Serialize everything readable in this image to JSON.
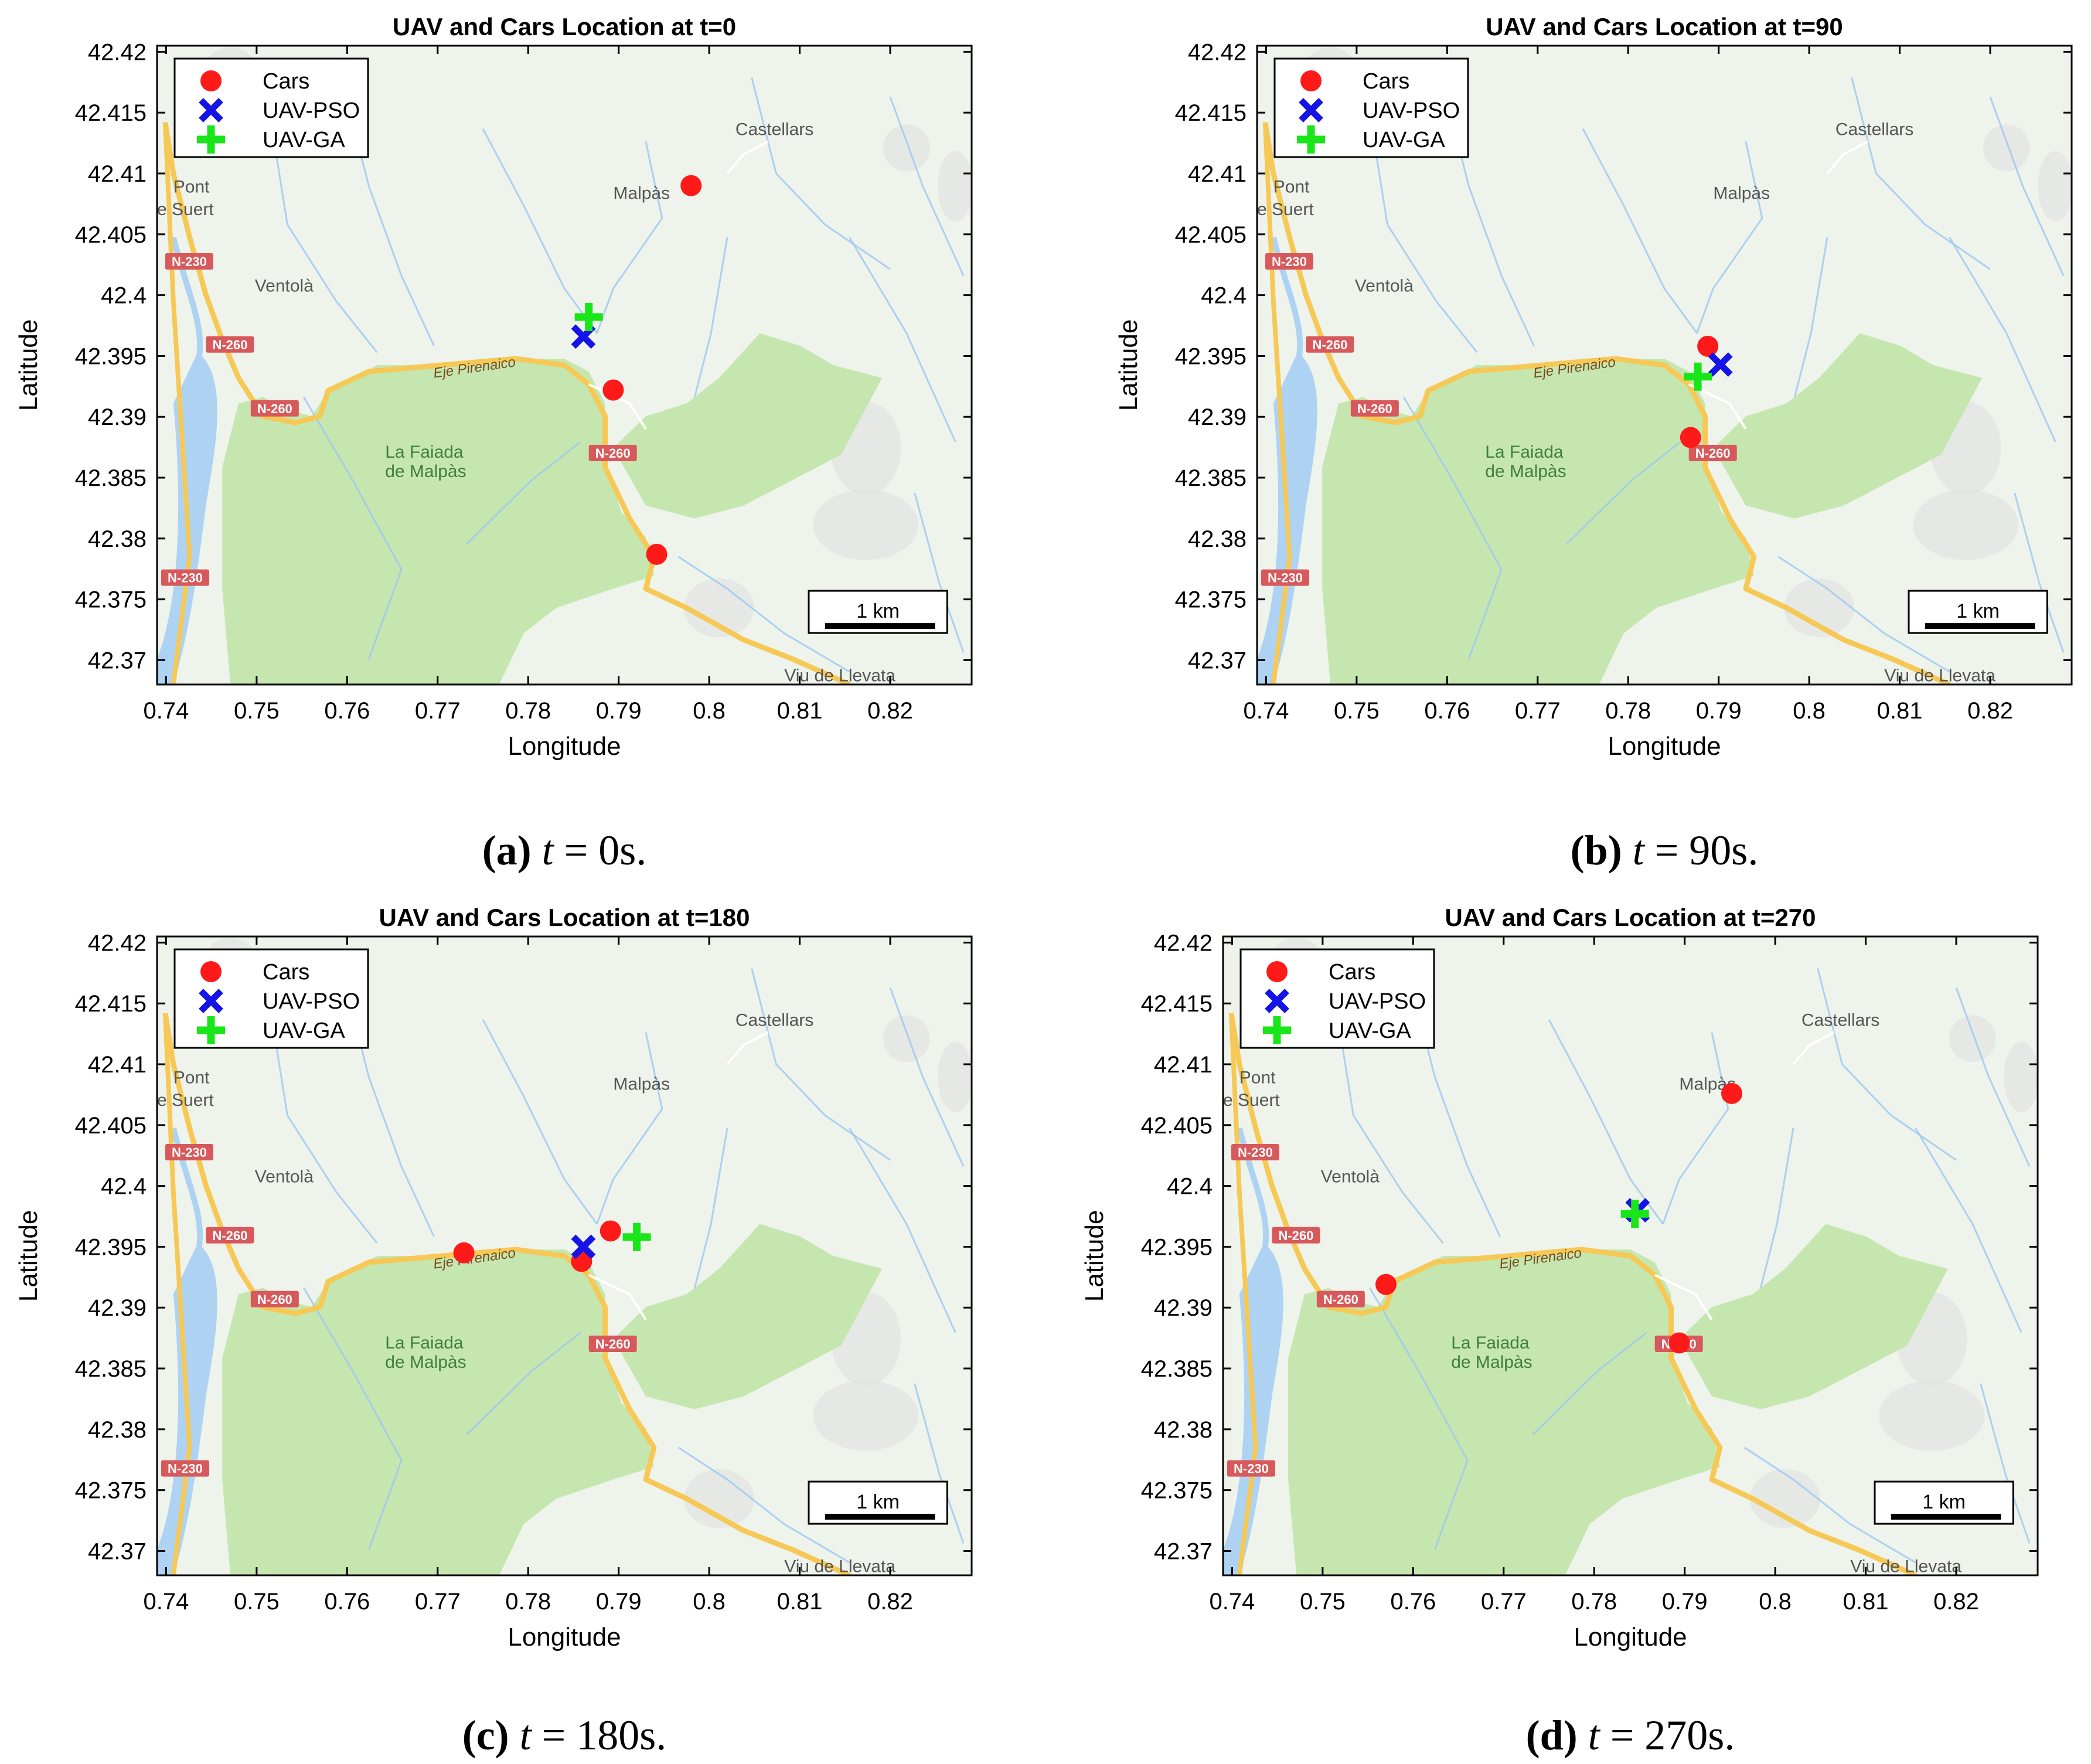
{
  "colors": {
    "cars": "#ff1a1a",
    "uav_pso": "#1414e6",
    "uav_ga": "#19e619",
    "map_bg": "#eef3ec",
    "forest": "#c6e6b0",
    "water": "#aed3f2",
    "road": "#f6c956",
    "river": "#9cc7f0",
    "relief": "#e2e2e2",
    "road_badge": "#d7595b"
  },
  "map": {
    "place_labels": {
      "castellars": "Castellars",
      "malpas": "Malpàs",
      "pont": "Pont",
      "suert": "e Suert",
      "ventola": "Ventolà",
      "faiada_1": "La Faiada",
      "faiada_2": "de Malpàs",
      "eje": "Eje Pirenaico",
      "viu": "Viu de Llevata"
    },
    "road_badges": {
      "n230_top": "N-230",
      "n260_a": "N-260",
      "n260_b": "N-260",
      "n260_c": "N-260",
      "n230_bottom": "N-230"
    },
    "scale_bar": "1 km"
  },
  "chart_data": [
    {
      "type": "scatter",
      "title": "UAV and Cars Location at t=0",
      "xlabel": "Longitude",
      "ylabel": "Latitude",
      "xlim": [
        0.739,
        0.829
      ],
      "ylim": [
        42.368,
        42.4205
      ],
      "xticks": [
        0.74,
        0.75,
        0.76,
        0.77,
        0.78,
        0.79,
        0.8,
        0.81,
        0.82
      ],
      "xtick_labels": [
        "0.74",
        "0.75",
        "0.76",
        "0.77",
        "0.78",
        "0.79",
        "0.8",
        "0.81",
        "0.82"
      ],
      "yticks": [
        42.37,
        42.375,
        42.38,
        42.385,
        42.39,
        42.395,
        42.4,
        42.405,
        42.41,
        42.415,
        42.42
      ],
      "ytick_labels": [
        "42.37",
        "42.375",
        "42.38",
        "42.385",
        "42.39",
        "42.395",
        "42.4",
        "42.405",
        "42.41",
        "42.415",
        "42.42"
      ],
      "legend_position": "top-left",
      "series": [
        {
          "name": "Cars",
          "marker": "circle",
          "points": [
            [
              0.798,
              42.409
            ],
            [
              0.7894,
              42.3922
            ],
            [
              0.7942,
              42.3787
            ]
          ]
        },
        {
          "name": "UAV-PSO",
          "marker": "x",
          "points": [
            [
              0.7861,
              42.3966
            ]
          ]
        },
        {
          "name": "UAV-GA",
          "marker": "plus",
          "points": [
            [
              0.7867,
              42.3982
            ]
          ]
        }
      ],
      "caption": {
        "label": "(a)",
        "var": "t",
        "rest": " = 0s."
      }
    },
    {
      "type": "scatter",
      "title": "UAV and Cars Location at t=90",
      "xlabel": "Longitude",
      "ylabel": "Latitude",
      "xlim": [
        0.739,
        0.829
      ],
      "ylim": [
        42.368,
        42.4205
      ],
      "xticks": [
        0.74,
        0.75,
        0.76,
        0.77,
        0.78,
        0.79,
        0.8,
        0.81,
        0.82
      ],
      "xtick_labels": [
        "0.74",
        "0.75",
        "0.76",
        "0.77",
        "0.78",
        "0.79",
        "0.8",
        "0.81",
        "0.82"
      ],
      "yticks": [
        42.37,
        42.375,
        42.38,
        42.385,
        42.39,
        42.395,
        42.4,
        42.405,
        42.41,
        42.415,
        42.42
      ],
      "ytick_labels": [
        "42.37",
        "42.375",
        "42.38",
        "42.385",
        "42.39",
        "42.395",
        "42.4",
        "42.405",
        "42.41",
        "42.415",
        "42.42"
      ],
      "legend_position": "top-left",
      "series": [
        {
          "name": "Cars",
          "marker": "circle",
          "points": [
            [
              0.7888,
              42.3958
            ],
            [
              0.7869,
              42.3883
            ]
          ]
        },
        {
          "name": "UAV-PSO",
          "marker": "x",
          "points": [
            [
              0.7902,
              42.3943
            ]
          ]
        },
        {
          "name": "UAV-GA",
          "marker": "plus",
          "points": [
            [
              0.7877,
              42.3933
            ]
          ]
        }
      ],
      "caption": {
        "label": "(b)",
        "var": "t",
        "rest": " = 90s."
      }
    },
    {
      "type": "scatter",
      "title": "UAV and Cars Location at t=180",
      "xlabel": "Longitude",
      "ylabel": "Latitude",
      "xlim": [
        0.739,
        0.829
      ],
      "ylim": [
        42.368,
        42.4205
      ],
      "xticks": [
        0.74,
        0.75,
        0.76,
        0.77,
        0.78,
        0.79,
        0.8,
        0.81,
        0.82
      ],
      "xtick_labels": [
        "0.74",
        "0.75",
        "0.76",
        "0.77",
        "0.78",
        "0.79",
        "0.8",
        "0.81",
        "0.82"
      ],
      "yticks": [
        42.37,
        42.375,
        42.38,
        42.385,
        42.39,
        42.395,
        42.4,
        42.405,
        42.41,
        42.415,
        42.42
      ],
      "ytick_labels": [
        "42.37",
        "42.375",
        "42.38",
        "42.385",
        "42.39",
        "42.395",
        "42.4",
        "42.405",
        "42.41",
        "42.415",
        "42.42"
      ],
      "legend_position": "top-left",
      "series": [
        {
          "name": "Cars",
          "marker": "circle",
          "points": [
            [
              0.7729,
              42.3945
            ],
            [
              0.7859,
              42.3938
            ],
            [
              0.7891,
              42.3963
            ]
          ]
        },
        {
          "name": "UAV-PSO",
          "marker": "x",
          "points": [
            [
              0.7861,
              42.395
            ]
          ]
        },
        {
          "name": "UAV-GA",
          "marker": "plus",
          "points": [
            [
              0.792,
              42.3958
            ]
          ]
        }
      ],
      "caption": {
        "label": "(c)",
        "var": "t",
        "rest": " = 180s."
      }
    },
    {
      "type": "scatter",
      "title": "UAV and Cars Location at t=270",
      "xlabel": "Longitude",
      "ylabel": "Latitude",
      "xlim": [
        0.739,
        0.829
      ],
      "ylim": [
        42.368,
        42.4205
      ],
      "xticks": [
        0.74,
        0.75,
        0.76,
        0.77,
        0.78,
        0.79,
        0.8,
        0.81,
        0.82
      ],
      "xtick_labels": [
        "0.74",
        "0.75",
        "0.76",
        "0.77",
        "0.78",
        "0.79",
        "0.8",
        "0.81",
        "0.82"
      ],
      "yticks": [
        42.37,
        42.375,
        42.38,
        42.385,
        42.39,
        42.395,
        42.4,
        42.405,
        42.41,
        42.415,
        42.42
      ],
      "ytick_labels": [
        "42.37",
        "42.375",
        "42.38",
        "42.385",
        "42.39",
        "42.395",
        "42.4",
        "42.405",
        "42.41",
        "42.415",
        "42.42"
      ],
      "legend_position": "top-left",
      "series": [
        {
          "name": "Cars",
          "marker": "circle",
          "points": [
            [
              0.7952,
              42.4076
            ],
            [
              0.757,
              42.3919
            ],
            [
              0.7894,
              42.3871
            ]
          ]
        },
        {
          "name": "UAV-PSO",
          "marker": "x",
          "points": [
            [
              0.7848,
              42.398
            ]
          ]
        },
        {
          "name": "UAV-GA",
          "marker": "plus",
          "points": [
            [
              0.7845,
              42.3977
            ]
          ]
        }
      ],
      "caption": {
        "label": "(d)",
        "var": "t",
        "rest": " = 270s."
      }
    }
  ]
}
